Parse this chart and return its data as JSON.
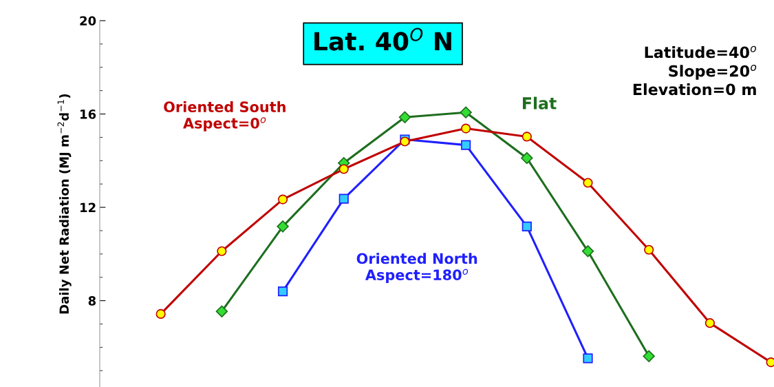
{
  "chart_data": {
    "type": "line",
    "title": "Lat. 40$^{O}$ N",
    "categories": [
      null,
      null,
      null,
      null,
      null,
      null,
      null,
      null,
      null,
      null,
      null
    ],
    "ylabel": "Daily Net Radiation (MJ m$^{−2}$d$^{−1}$)",
    "annotations": [
      "Latitude=40$^{o}$\nSlope=20$^{o}$\nElevation=0 m"
    ],
    "series": [
      {
        "name": "Oriented South\nAspect=0$^{o}$",
        "color": "#c00000",
        "marker": "circle",
        "values": [
          7.43,
          10.12,
          12.34,
          13.64,
          14.82,
          15.38,
          15.03,
          13.05,
          10.18,
          7.04,
          5.36
        ]
      },
      {
        "name": "Flat",
        "color": "#1e6e1e",
        "marker": "diamond",
        "values": [
          null,
          7.54,
          11.18,
          13.9,
          15.86,
          16.07,
          14.11,
          10.12,
          5.62,
          null,
          null
        ]
      },
      {
        "name": "Oriented North\nAspect=180$^{o}$",
        "color": "#1f1fff",
        "marker": "square",
        "values": [
          null,
          null,
          8.4,
          12.37,
          14.91,
          14.67,
          11.18,
          5.53,
          null,
          null,
          null
        ]
      }
    ],
    "ylim": [
      4.3,
      20
    ],
    "yticks": [
      8,
      12,
      16,
      20
    ],
    "tick_labels": "y",
    "grid": false,
    "legend": false
  }
}
